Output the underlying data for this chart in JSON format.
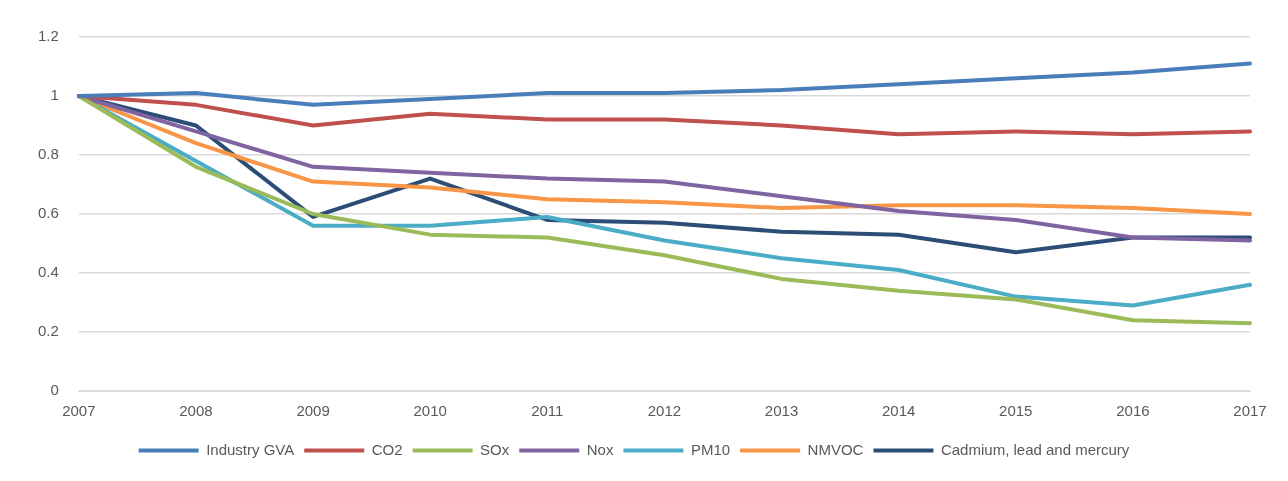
{
  "chart_data": {
    "type": "line",
    "categories": [
      "2007",
      "2008",
      "2009",
      "2010",
      "2011",
      "2012",
      "2013",
      "2014",
      "2015",
      "2016",
      "2017"
    ],
    "ylim": [
      0,
      1.2
    ],
    "yticks": [
      0,
      0.2,
      0.4,
      0.6,
      0.8,
      1,
      1.2
    ],
    "grid": "y",
    "legend": "bottom",
    "marker": "none",
    "series": [
      {
        "name": "Industry GVA",
        "color": "#4a7ebb",
        "values": [
          1,
          1.01,
          0.97,
          0.99,
          1.01,
          1.01,
          1.02,
          1.04,
          1.06,
          1.08,
          1.11
        ]
      },
      {
        "name": "CO2",
        "color": "#c0504d",
        "values": [
          1,
          0.97,
          0.9,
          0.94,
          0.92,
          0.92,
          0.9,
          0.87,
          0.88,
          0.87,
          0.88
        ]
      },
      {
        "name": "SOx",
        "color": "#9bbb59",
        "values": [
          1,
          0.76,
          0.6,
          0.53,
          0.52,
          0.46,
          0.38,
          0.34,
          0.31,
          0.24,
          0.23
        ]
      },
      {
        "name": "Nox",
        "color": "#8064a2",
        "values": [
          1,
          0.88,
          0.76,
          0.74,
          0.72,
          0.71,
          0.66,
          0.61,
          0.58,
          0.52,
          0.51
        ]
      },
      {
        "name": "PM10",
        "color": "#4bacc6",
        "values": [
          1,
          0.78,
          0.56,
          0.56,
          0.59,
          0.51,
          0.45,
          0.41,
          0.32,
          0.29,
          0.36
        ]
      },
      {
        "name": "NMVOC",
        "color": "#f79646",
        "values": [
          1,
          0.84,
          0.71,
          0.69,
          0.65,
          0.64,
          0.62,
          0.63,
          0.63,
          0.62,
          0.6
        ]
      },
      {
        "name": "Cadmium, lead and mercury",
        "color": "#2c4d75",
        "values": [
          1,
          0.9,
          0.59,
          0.72,
          0.58,
          0.57,
          0.54,
          0.53,
          0.47,
          0.52,
          0.52
        ]
      }
    ]
  }
}
